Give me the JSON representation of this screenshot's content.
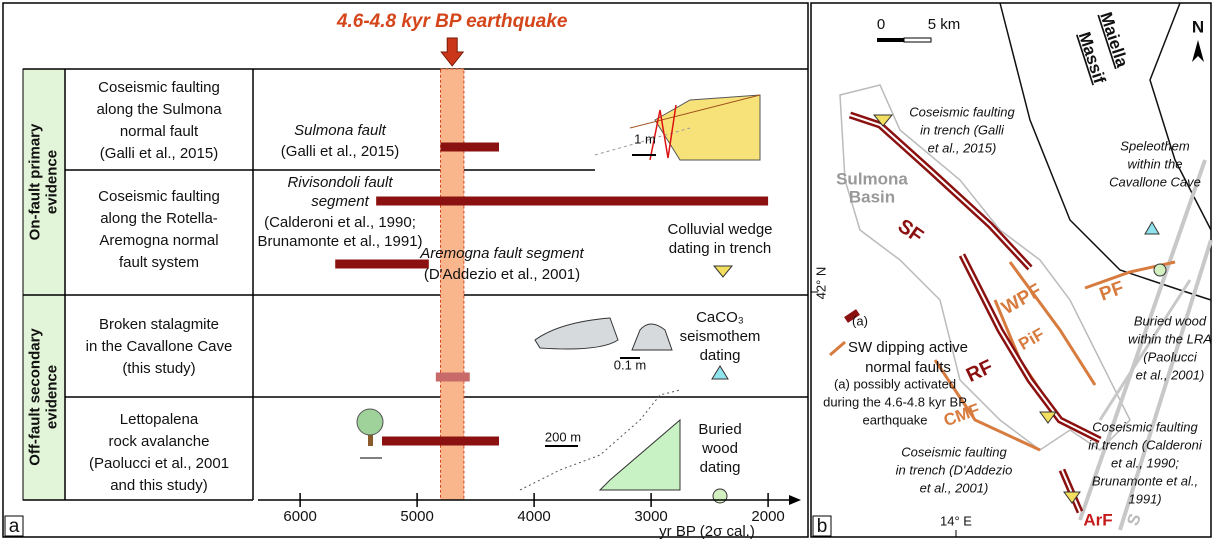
{
  "panel_a": {
    "label": "a",
    "title": "4.6-4.8 kyr BP earthquake",
    "event_range": [
      4800,
      4600
    ],
    "axis": {
      "label": "yr BP (2σ cal.)",
      "xlim": [
        6360,
        1770
      ],
      "xticks": [
        6000,
        5000,
        4000,
        3000,
        2000
      ]
    },
    "groups": [
      {
        "label": [
          "On-fault primary",
          "evidence"
        ]
      },
      {
        "label": [
          "Off-fault secondary",
          "evidence"
        ]
      }
    ],
    "rows": [
      {
        "label": [
          "Coseismic faulting",
          "along the Sulmona",
          "normal fault",
          "(Galli et al., 2015)"
        ],
        "bars": [
          {
            "range": [
              4800,
              4300
            ],
            "color": "#8b1111"
          }
        ]
      },
      {
        "label": [
          "Coseismic faulting",
          "along the Rotella-",
          "Aremogna normal",
          "fault system"
        ],
        "bars": [
          {
            "range": [
              5350,
              2000
            ],
            "color": "#8b1111"
          },
          {
            "range": [
              5700,
              4900
            ],
            "color": "#8b1111"
          }
        ]
      },
      {
        "label": [
          "Broken stalagmite",
          "in the Cavallone Cave",
          "(this study)"
        ],
        "bars": [
          {
            "range": [
              4840,
              4550
            ],
            "color": "#c86a6a"
          }
        ]
      },
      {
        "label": [
          "Lettopalena",
          "rock avalanche",
          "(Paolucci et al., 2001",
          "and this study)"
        ],
        "bars": [
          {
            "range": [
              5300,
              4300
            ],
            "color": "#8b1111"
          }
        ]
      }
    ],
    "notes": [
      [
        "Sulmona fault"
      ],
      [
        "(Galli et al., 2015)"
      ],
      [
        "Rivisondoli fault",
        "segment"
      ],
      [
        "(Calderoni et al., 1990;",
        "Brunamonte et al., 1991)"
      ],
      [
        "Aremogna fault segment"
      ],
      [
        "(D'Addezio et al., 2001)"
      ],
      [
        "Colluvial wedge",
        "dating in trench"
      ],
      [
        "CaCO₃",
        "seismothem",
        "dating"
      ],
      [
        "Buried",
        "wood",
        "dating"
      ],
      [
        "1 m"
      ],
      [
        "0.1 m"
      ],
      [
        "200 m"
      ]
    ]
  },
  "panel_b": {
    "label": "b",
    "labels": [
      [
        "0"
      ],
      [
        "5 km"
      ],
      [
        "N"
      ],
      [
        "Maiella"
      ],
      [
        "Massif"
      ],
      [
        "Coseismic faulting",
        "in trench (Galli",
        "et al., 2015)"
      ],
      [
        "Sulmona",
        "Basin"
      ],
      [
        "SF"
      ],
      [
        "Speleothem",
        "within the",
        "Cavallone Cave"
      ],
      [
        "42° N"
      ],
      [
        "(a)"
      ],
      [
        "SW dipping active",
        "normal faults"
      ],
      [
        "(a)  possibly  activated",
        "during the 4.6-4.8 kyr BP",
        "earthquake"
      ],
      [
        "WPF"
      ],
      [
        "PF"
      ],
      [
        "PiF"
      ],
      [
        "RF"
      ],
      [
        "CMF"
      ],
      [
        "Buried wood",
        "within the LRA",
        "(Paolucci",
        "et al., 2001)"
      ],
      [
        "Coseismic faulting",
        "in trench (Calderoni",
        "et al., 1990;",
        "Brunamonte et al.,",
        "1991)"
      ],
      [
        "Coseismic faulting",
        "in trench (D'Addezio",
        "et al., 2001)"
      ],
      [
        "14° E"
      ],
      [
        "ArF"
      ],
      [
        "S"
      ]
    ]
  }
}
